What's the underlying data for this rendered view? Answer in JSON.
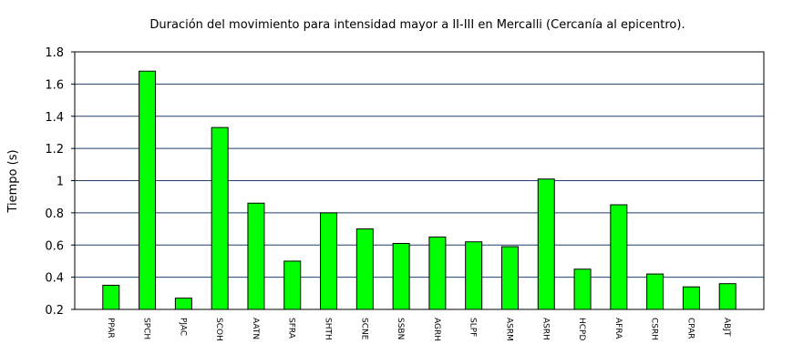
{
  "chart_data": {
    "type": "bar",
    "title": "Duración del movimiento para intensidad mayor a II-III en Mercalli (Cercanía al epicentro).",
    "xlabel": "",
    "ylabel": "Tiempo (s)",
    "ylim": [
      0.2,
      1.8
    ],
    "yticks": [
      "0.2",
      "0.4",
      "0.6",
      "0.8",
      "1",
      "1.2",
      "1.4",
      "1.6",
      "1.8"
    ],
    "grid": true,
    "bar_color": "#00ff00",
    "grid_color": "#1f3f6f",
    "categories": [
      "PPAR",
      "SPCH",
      "PJAC",
      "SCOH",
      "AATN",
      "SFRA",
      "SHTH",
      "SCNE",
      "SSBN",
      "AGRH",
      "SLPF",
      "ASRM",
      "ASRH",
      "HCPD",
      "AFRA",
      "CSRH",
      "CPAR",
      "ABJT"
    ],
    "values": [
      0.35,
      1.68,
      0.27,
      1.33,
      0.86,
      0.5,
      0.8,
      0.7,
      0.61,
      0.65,
      0.62,
      0.59,
      1.01,
      0.45,
      0.85,
      0.42,
      0.34,
      0.36
    ]
  }
}
